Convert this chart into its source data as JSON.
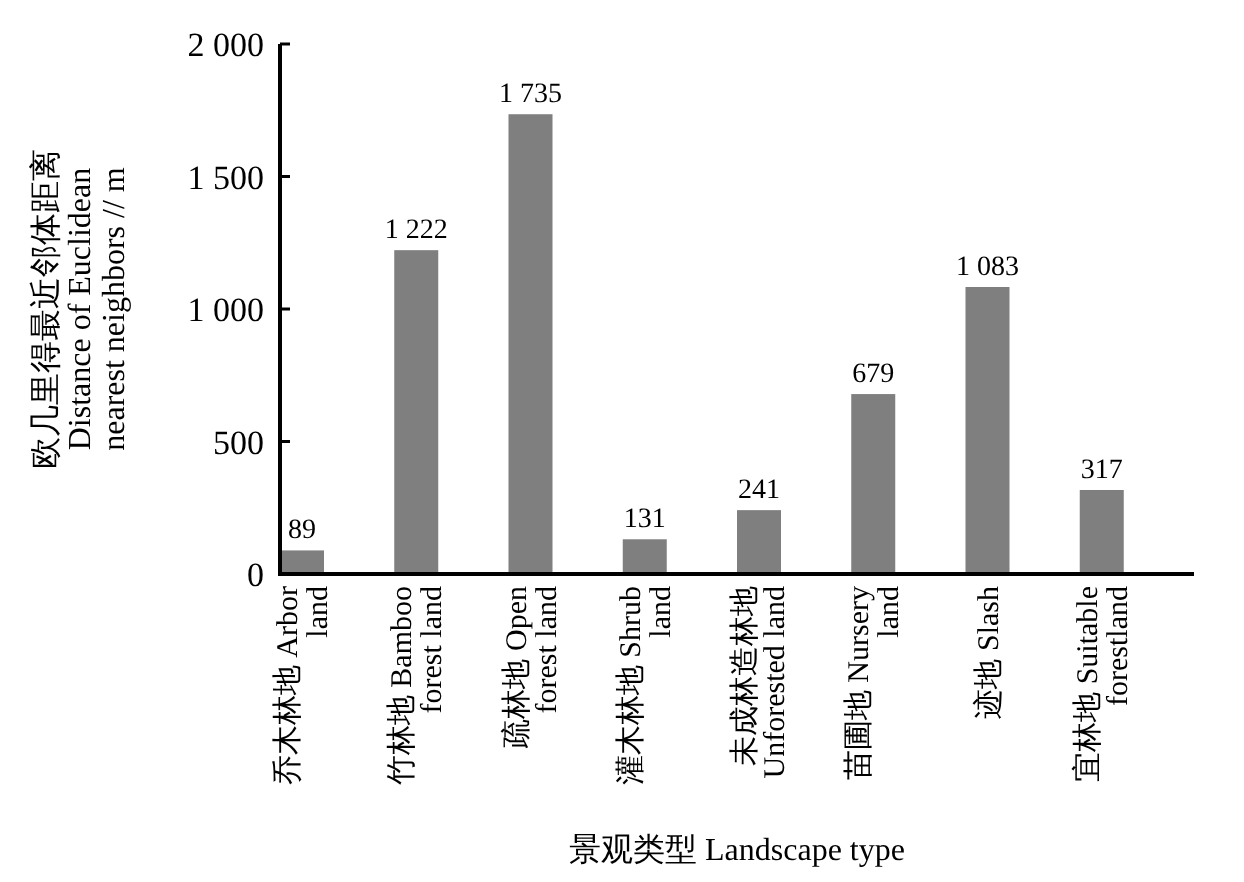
{
  "chart_data": {
    "type": "bar",
    "xlabel": "景观类型 Landscape type",
    "ylabel": "欧几里得最近邻体距离 Distance of Euclidean nearest neighbors // m",
    "categories": [
      "乔木林地 Arbor land",
      "竹林地 Bamboo forest land",
      "疏林地 Open forest land",
      "灌木林地 Shrub land",
      "未成林造林地 Unforested land",
      "苗圃地 Nursery land",
      "迹地 Slash",
      "宜林地 Suitable forestland"
    ],
    "values": [
      89,
      1222,
      1735,
      131,
      241,
      679,
      1083,
      317
    ],
    "value_labels": [
      "89",
      "1 222",
      "1 735",
      "131",
      "241",
      "679",
      "1 083",
      "317"
    ],
    "color": "#7f7f7f",
    "ylim": [
      0,
      2000
    ],
    "yticks": [
      0,
      500,
      {
        "value": 1000,
        "label": "1 000"
      },
      {
        "value": 1500,
        "label": "1 500"
      },
      {
        "value": 2000,
        "label": "2 000"
      }
    ],
    "grid": false
  }
}
